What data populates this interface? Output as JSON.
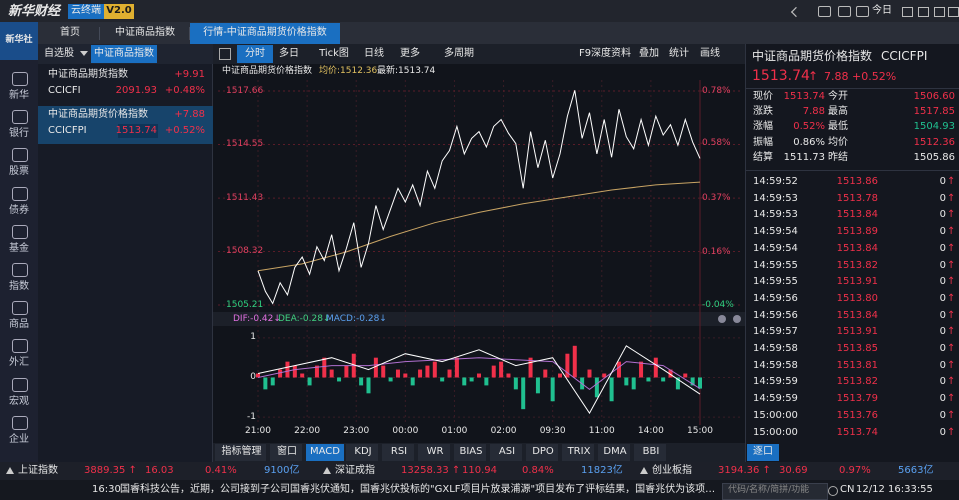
{
  "topbar": {
    "logo": "新华财经",
    "cloud": "云终端",
    "version": "V2.0",
    "today": "今日"
  },
  "tabs": [
    "首页",
    "中证商品指数",
    "行情-中证商品期货价格指数"
  ],
  "sidebar_logo": "新华社",
  "sidebar": [
    "新华",
    "银行",
    "股票",
    "债券",
    "基金",
    "指数",
    "商品",
    "外汇",
    "宏观",
    "企业"
  ],
  "watchlist": {
    "dropdown": "自选股",
    "tab": "中证商品指数",
    "rows": [
      {
        "name": "中证商品期货指数",
        "change": "+9.91",
        "code": "CCICFI",
        "price": "2091.93",
        "pct": "+0.48%"
      },
      {
        "name": "中证商品期货价格指数",
        "change": "+7.88",
        "code": "CCICFPI",
        "price": "1513.74",
        "pct": "+0.52%"
      }
    ]
  },
  "toolbar": {
    "left": [
      "分时",
      "多日",
      "Tick图",
      "日线",
      "更多",
      "多周期"
    ],
    "right": [
      "F9深度资料",
      "叠加",
      "统计",
      "画线"
    ]
  },
  "chart": {
    "type": "line",
    "title": "中证商品期货价格指数",
    "avg_label": "均价:1512.36",
    "last_label": "最新:1513.74",
    "ylim": [
      1505.21,
      1517.66
    ],
    "yticks": [
      1505.21,
      1508.32,
      1511.43,
      1514.55,
      1517.66
    ],
    "y2lim": [
      -0.04,
      0.78
    ],
    "y2ticks": [
      {
        "value": -0.04,
        "label": "-0.04%"
      },
      {
        "value": 0.16,
        "label": "0.16%"
      },
      {
        "value": 0.37,
        "label": "0.37%"
      },
      {
        "value": 0.58,
        "label": "0.58%"
      },
      {
        "value": 0.78,
        "label": "0.78%"
      }
    ],
    "x_labels": [
      "21:00",
      "22:00",
      "23:00",
      "00:00",
      "01:00",
      "02:00",
      "09:30",
      "11:00",
      "14:00",
      "15:00"
    ],
    "grid": true,
    "price_color": "#ffffff",
    "average_color": "#c8a464",
    "price": [
      1507.2,
      1506.0,
      1505.3,
      1506.5,
      1505.8,
      1507.4,
      1508.0,
      1507.0,
      1508.6,
      1507.8,
      1509.3,
      1507.2,
      1508.5,
      1510.0,
      1507.4,
      1508.8,
      1511.0,
      1509.6,
      1510.8,
      1512.0,
      1511.2,
      1512.2,
      1511.0,
      1513.0,
      1512.0,
      1513.6,
      1514.2,
      1515.6,
      1514.0,
      1514.9,
      1515.3,
      1514.4,
      1515.6,
      1516.0,
      1515.2,
      1514.6,
      1512.0,
      1515.3,
      1513.2,
      1514.8,
      1512.6,
      1514.0,
      1516.2,
      1517.7,
      1514.9,
      1516.4,
      1514.0,
      1516.0,
      1513.8,
      1516.6,
      1515.0,
      1514.3,
      1516.0,
      1514.5,
      1516.2,
      1515.1,
      1515.7,
      1514.5,
      1516.0,
      1514.7,
      1513.74
    ],
    "average": [
      1507.2,
      1507.6,
      1508.3,
      1509.2,
      1510.0,
      1510.6,
      1511.1,
      1511.5,
      1511.9,
      1512.2,
      1512.36
    ]
  },
  "macd": {
    "header": [
      "DIF:-0.42↓",
      "DEA:-0.28↓",
      "MACD:-0.28↓"
    ],
    "header_colors": [
      "#e070e0",
      "#40d080",
      "#5aa0f0"
    ],
    "ylim": [
      -1.2,
      1.3
    ],
    "yticks": [
      -1,
      0,
      1
    ],
    "up_color": "#f0304a",
    "down_color": "#20c090",
    "bars": [
      0.1,
      -0.3,
      -0.2,
      0.2,
      0.4,
      0.3,
      0.1,
      -0.2,
      0.3,
      0.5,
      0.2,
      -0.1,
      0.3,
      0.6,
      -0.2,
      -0.4,
      0.5,
      0.3,
      -0.1,
      0.2,
      0.1,
      -0.2,
      0.2,
      0.3,
      0.4,
      -0.1,
      0.2,
      0.5,
      -0.2,
      -0.1,
      0.1,
      -0.2,
      0.3,
      0.4,
      0.1,
      -0.3,
      -0.8,
      0.5,
      -0.4,
      0.2,
      -0.6,
      0.1,
      0.6,
      0.8,
      -0.3,
      0.2,
      -0.5,
      0.1,
      -0.6,
      0.4,
      -0.2,
      -0.3,
      0.4,
      -0.1,
      0.5,
      -0.1,
      0.2,
      -0.3,
      0.1,
      -0.2,
      -0.28
    ],
    "dif": [
      0.1,
      0.3,
      0.5,
      0.2,
      0.6,
      0.4,
      0.7,
      0.3,
      0.5,
      -0.9,
      0.8,
      0.2,
      -0.42
    ],
    "dea": [
      0.0,
      0.2,
      0.3,
      0.3,
      0.4,
      0.45,
      0.5,
      0.45,
      0.4,
      -0.3,
      0.4,
      0.3,
      -0.28
    ]
  },
  "indicator_tabs": [
    "指标管理",
    "窗口",
    "MACD",
    "KDJ",
    "RSI",
    "WR",
    "BIAS",
    "ASI",
    "DPO",
    "TRIX",
    "DMA",
    "BBI"
  ],
  "quote": {
    "title": "中证商品期货价格指数",
    "code": "CCICFPI",
    "price": "1513.74",
    "arrow": "↑",
    "change": "7.88",
    "pct": "+0.52%",
    "rows": [
      [
        "现价",
        "1513.74",
        "今开",
        "1506.60"
      ],
      [
        "涨跌",
        "7.88",
        "最高",
        "1517.85"
      ],
      [
        "涨幅",
        "0.52%",
        "最低",
        "1504.93"
      ],
      [
        "振幅",
        "0.86%",
        "均价",
        "1512.36"
      ],
      [
        "结算",
        "1511.73",
        "昨结",
        "1505.86"
      ]
    ],
    "ticks": [
      [
        "14:59:52",
        "1513.86",
        "0",
        "↑"
      ],
      [
        "14:59:53",
        "1513.78",
        "0",
        "↑"
      ],
      [
        "14:59:53",
        "1513.84",
        "0",
        "↑"
      ],
      [
        "14:59:54",
        "1513.89",
        "0",
        "↑"
      ],
      [
        "14:59:54",
        "1513.84",
        "0",
        "↑"
      ],
      [
        "14:59:55",
        "1513.82",
        "0",
        "↑"
      ],
      [
        "14:59:55",
        "1513.91",
        "0",
        "↑"
      ],
      [
        "14:59:56",
        "1513.80",
        "0",
        "↑"
      ],
      [
        "14:59:56",
        "1513.84",
        "0",
        "↑"
      ],
      [
        "14:59:57",
        "1513.91",
        "0",
        "↑"
      ],
      [
        "14:59:58",
        "1513.85",
        "0",
        "↑"
      ],
      [
        "14:59:58",
        "1513.81",
        "0",
        "↑"
      ],
      [
        "14:59:59",
        "1513.82",
        "0",
        "↑"
      ],
      [
        "14:59:59",
        "1513.79",
        "0",
        "↑"
      ],
      [
        "15:00:00",
        "1513.76",
        "0",
        "↑"
      ],
      [
        "15:00:00",
        "1513.74",
        "0",
        "↑"
      ]
    ],
    "tab": "逐口"
  },
  "ticker": [
    {
      "name": "上证指数",
      "price": "3889.35 ↑",
      "change": "16.03",
      "pct": "0.41%",
      "amount": "9100亿"
    },
    {
      "name": "深证成指",
      "price": "13258.33 ↑",
      "change": "110.94",
      "pct": "0.84%",
      "amount": "11823亿"
    },
    {
      "name": "创业板指",
      "price": "3194.36 ↑",
      "change": "30.69",
      "pct": "0.97%",
      "amount": "5663亿"
    }
  ],
  "news": {
    "time": "16:30",
    "text": "国睿科技公告，近期，公司接到子公司国睿兆伏通知，国睿兆伏投标的\"GXLF项目片放录浦源\"项目发布了评标结果，国睿兆伏为该项目的中标候选人",
    "search": "代码/名称/简拼/功能",
    "region": "CN",
    "clock": "12/12 16:33:55"
  }
}
